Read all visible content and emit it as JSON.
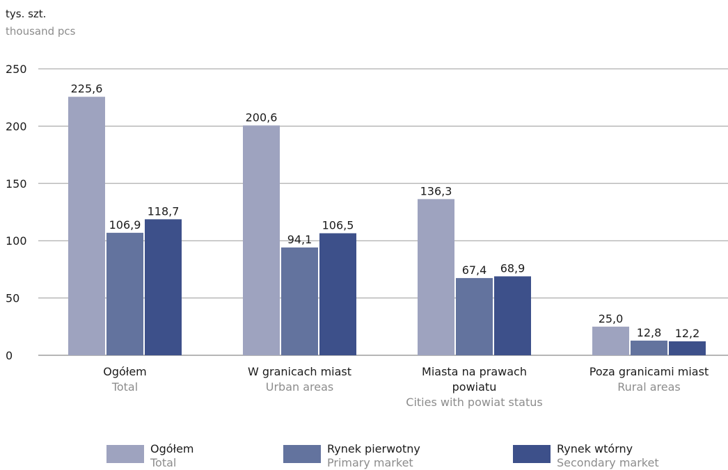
{
  "chart_data": {
    "type": "bar",
    "ylabel": "tys. szt.",
    "ylabel_en": "thousand pcs",
    "ylim": [
      0,
      250
    ],
    "yticks": [
      0,
      50,
      100,
      150,
      200,
      250
    ],
    "grid": true,
    "legend_position": "bottom",
    "categories": [
      {
        "pl": [
          "Ogółem"
        ],
        "en": "Total"
      },
      {
        "pl": [
          "W granicach miast"
        ],
        "en": "Urban areas"
      },
      {
        "pl": [
          "Miasta na prawach",
          "powiatu"
        ],
        "en": "Cities with powiat status"
      },
      {
        "pl": [
          "Poza granicami miast"
        ],
        "en": "Rural areas"
      }
    ],
    "series": [
      {
        "name": "Ogółem",
        "name_en": "Total",
        "color": "#9ea3bf",
        "values": [
          225.6,
          200.6,
          136.3,
          25.0
        ],
        "labels": [
          "225,6",
          "200,6",
          "136,3",
          "25,0"
        ]
      },
      {
        "name": "Rynek pierwotny",
        "name_en": "Primary market",
        "color": "#63739e",
        "values": [
          106.9,
          94.1,
          67.4,
          12.8
        ],
        "labels": [
          "106,9",
          "94,1",
          "67,4",
          "12,8"
        ]
      },
      {
        "name": "Rynek wtórny",
        "name_en": "Secondary market",
        "color": "#3d508a",
        "values": [
          118.7,
          106.5,
          68.9,
          12.2
        ],
        "labels": [
          "118,7",
          "106,5",
          "68,9",
          "12,2"
        ]
      }
    ]
  }
}
